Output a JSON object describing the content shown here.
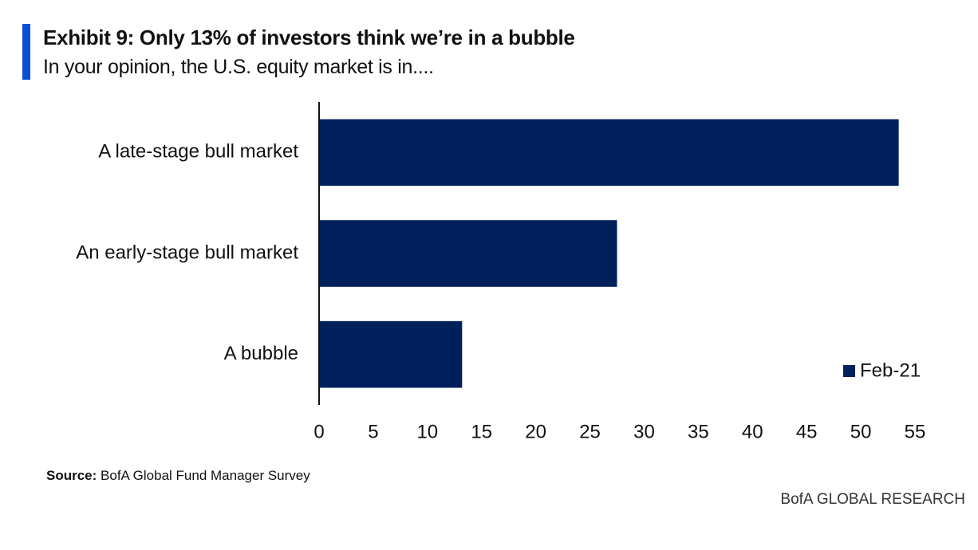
{
  "header": {
    "title": "Exhibit 9: Only 13% of investors think we’re in a bubble",
    "subtitle": "In your opinion, the U.S. equity market is in....",
    "accent_color": "#0a4fd6"
  },
  "chart_data": {
    "type": "bar",
    "orientation": "horizontal",
    "categories": [
      "A late-stage bull market",
      "An early-stage bull market",
      "A bubble"
    ],
    "series": [
      {
        "name": "Feb-21",
        "values": [
          53.5,
          27.5,
          13.2
        ],
        "color": "#00205b"
      }
    ],
    "xlim": [
      0,
      55
    ],
    "xticks": [
      "0",
      "5",
      "10",
      "15",
      "20",
      "25",
      "30",
      "35",
      "40",
      "45",
      "50",
      "55"
    ],
    "grid": false,
    "legend_position": "bottom-right"
  },
  "footer": {
    "source_label": "Source:",
    "source_text": "BofA Global Fund Manager Survey",
    "brand": "BofA GLOBAL RESEARCH"
  }
}
